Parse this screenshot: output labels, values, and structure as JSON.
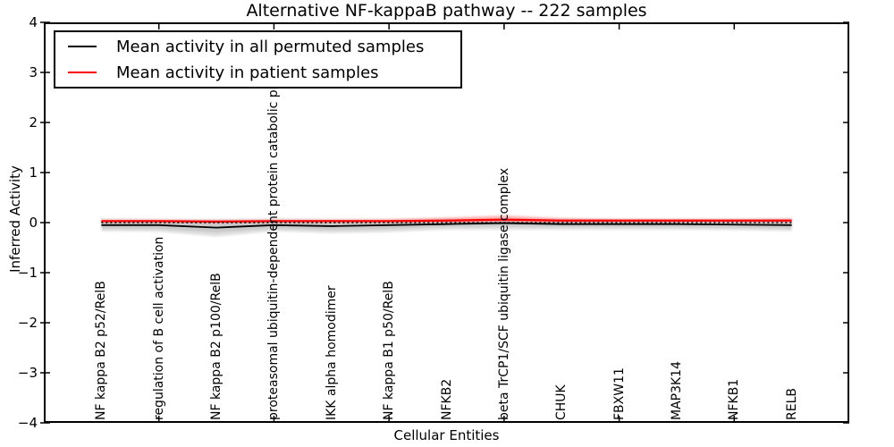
{
  "figure": {
    "background": "#ffffff",
    "title": "Alternative NF-kappaB pathway -- 222 samples",
    "xlabel": "Cellular Entities",
    "ylabel": "Inferred Activity"
  },
  "legend": {
    "position": "upper left",
    "entries": [
      {
        "label": "Mean activity in all permuted samples",
        "color": "#000000"
      },
      {
        "label": "Mean activity in patient samples",
        "color": "#ff0000"
      }
    ]
  },
  "chart_data": {
    "type": "line",
    "title": "Alternative NF-kappaB pathway -- 222 samples",
    "xlabel": "Cellular Entities",
    "ylabel": "Inferred Activity",
    "xlim": [
      0,
      14
    ],
    "ylim": [
      -4,
      4
    ],
    "yticks": [
      -4,
      -3,
      -2,
      -1,
      0,
      1,
      2,
      3,
      4
    ],
    "ytick_labels": [
      "−4",
      "−3",
      "−2",
      "−1",
      "0",
      "1",
      "2",
      "3",
      "4"
    ],
    "xtick_x": [
      2,
      4,
      6,
      8,
      10,
      12
    ],
    "grid": false,
    "legend_position": "upper left",
    "categories": [
      "NF kappa B2 p52/RelB",
      "regulation of B cell activation",
      "NF kappa B2 p100/RelB",
      "proteasomal ubiquitin-dependent protein catabolic pr",
      "IKK alpha homodimer",
      "NF kappa B1 p50/RelB",
      "NFKB2",
      "beta TrCP1/SCF ubiquitin ligase complex",
      "CHUK",
      "FBXW11",
      "MAP3K14",
      "NFKB1",
      "RELB"
    ],
    "category_x": [
      1,
      2,
      3,
      4,
      5,
      6,
      7,
      8,
      9,
      10,
      11,
      12,
      13
    ],
    "series": [
      {
        "name": "Mean activity in all permuted samples",
        "color": "#000000",
        "width": 1.8,
        "values": [
          -0.05,
          -0.05,
          -0.1,
          -0.05,
          -0.07,
          -0.05,
          -0.03,
          -0.01,
          -0.03,
          -0.03,
          -0.03,
          -0.04,
          -0.05
        ]
      },
      {
        "name": "Mean activity in patient samples",
        "color": "#ff0000",
        "width": 2.2,
        "values": [
          0.03,
          0.03,
          0.02,
          0.03,
          0.03,
          0.03,
          0.04,
          0.06,
          0.04,
          0.04,
          0.04,
          0.04,
          0.04
        ]
      }
    ],
    "bands": [
      {
        "name": "permuted-std-outer",
        "color": "#bdbdbd",
        "opacity": 0.45,
        "upper": [
          0.08,
          0.07,
          0.07,
          0.08,
          0.07,
          0.07,
          0.08,
          0.08,
          0.08,
          0.08,
          0.08,
          0.08,
          0.09
        ],
        "lower": [
          -0.17,
          -0.18,
          -0.28,
          -0.17,
          -0.21,
          -0.19,
          -0.14,
          -0.14,
          -0.14,
          -0.14,
          -0.14,
          -0.15,
          -0.17
        ]
      },
      {
        "name": "permuted-std-inner",
        "color": "#9e9e9e",
        "opacity": 0.35,
        "upper": [
          0.02,
          0.02,
          0.0,
          0.02,
          0.01,
          0.02,
          0.03,
          0.04,
          0.03,
          0.03,
          0.03,
          0.02,
          0.02
        ],
        "lower": [
          -0.12,
          -0.13,
          -0.2,
          -0.12,
          -0.15,
          -0.13,
          -0.09,
          -0.08,
          -0.09,
          -0.09,
          -0.09,
          -0.1,
          -0.12
        ]
      },
      {
        "name": "patient-std",
        "color": "#ff4444",
        "opacity": 0.4,
        "upper": [
          0.06,
          0.06,
          0.05,
          0.06,
          0.06,
          0.07,
          0.1,
          0.14,
          0.09,
          0.07,
          0.07,
          0.07,
          0.08
        ],
        "lower": [
          0.0,
          0.0,
          -0.01,
          0.0,
          0.0,
          0.0,
          0.0,
          -0.01,
          0.0,
          0.01,
          0.01,
          0.01,
          0.01
        ]
      }
    ],
    "zero_line": {
      "y": 0,
      "color": "#000000",
      "style": "dotted"
    }
  }
}
